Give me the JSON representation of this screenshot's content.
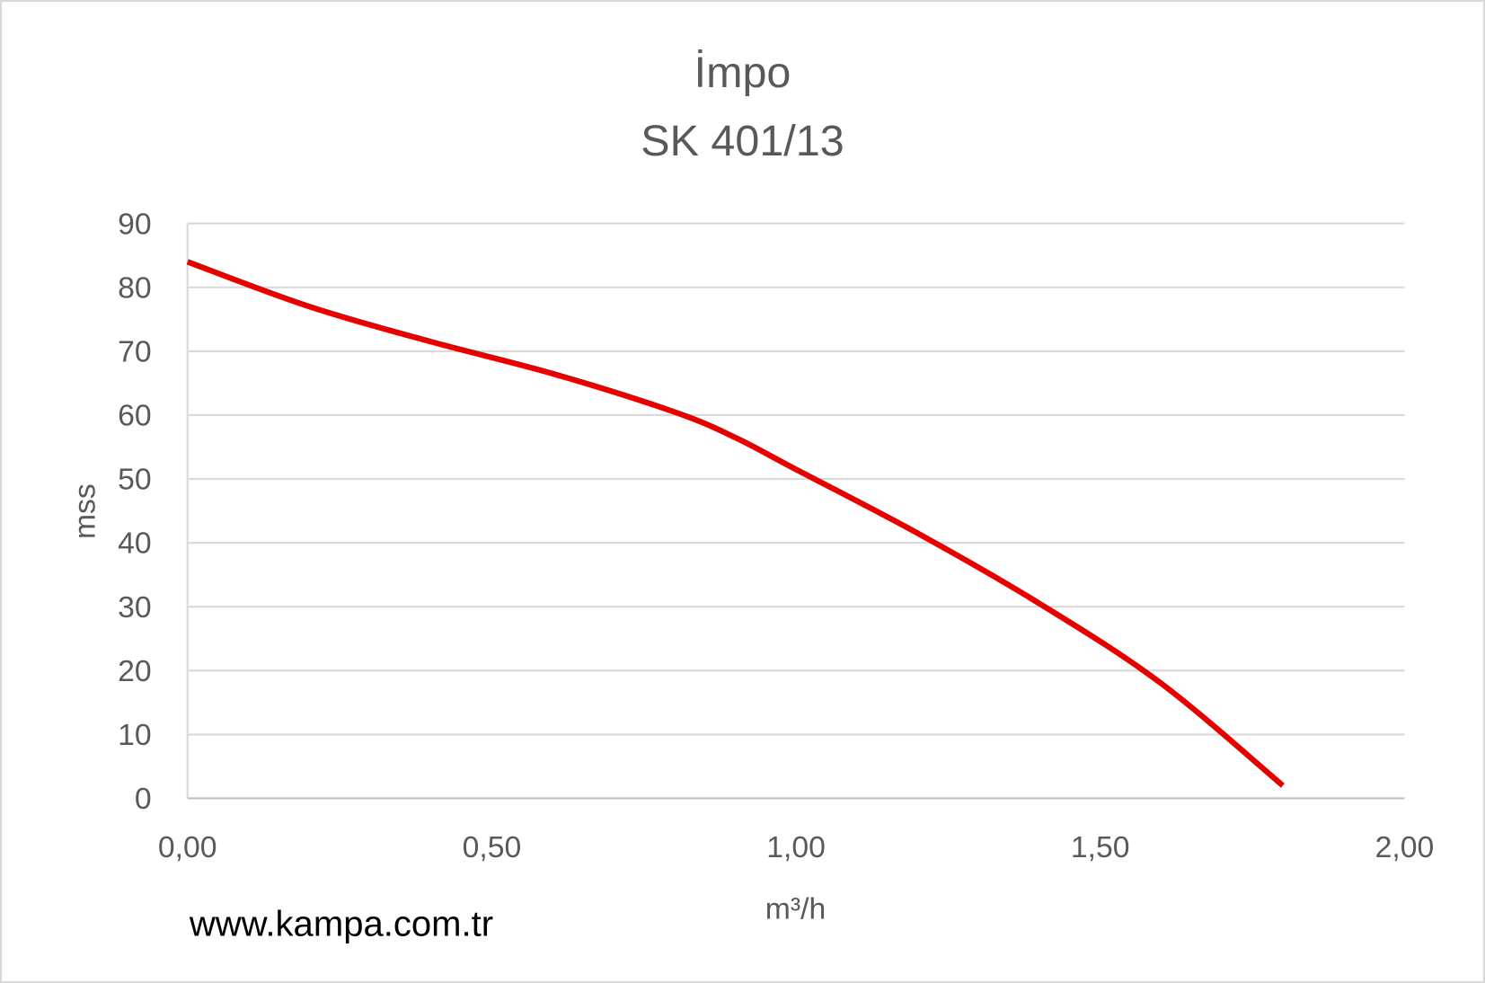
{
  "chart_data": {
    "type": "line",
    "title": "İmpo",
    "subtitle": "SK 401/13",
    "xlabel": "m³/h",
    "ylabel": "mss",
    "xlim": [
      0,
      2
    ],
    "ylim": [
      0,
      90
    ],
    "x_ticks": [
      "0,00",
      "0,50",
      "1,00",
      "1,50",
      "2,00"
    ],
    "y_ticks": [
      "0",
      "10",
      "20",
      "30",
      "40",
      "50",
      "60",
      "70",
      "80",
      "90"
    ],
    "grid": true,
    "legend": "none",
    "series": [
      {
        "name": "SK 401/13",
        "color": "#e60000",
        "x": [
          0,
          0.2,
          0.4,
          0.6,
          0.8,
          0.9,
          1.0,
          1.2,
          1.4,
          1.6,
          1.8
        ],
        "y": [
          84,
          77,
          71.5,
          66.5,
          60.5,
          56.5,
          51.5,
          41.5,
          30.5,
          18,
          2
        ]
      }
    ],
    "annotation": "www.kampa.com.tr"
  }
}
